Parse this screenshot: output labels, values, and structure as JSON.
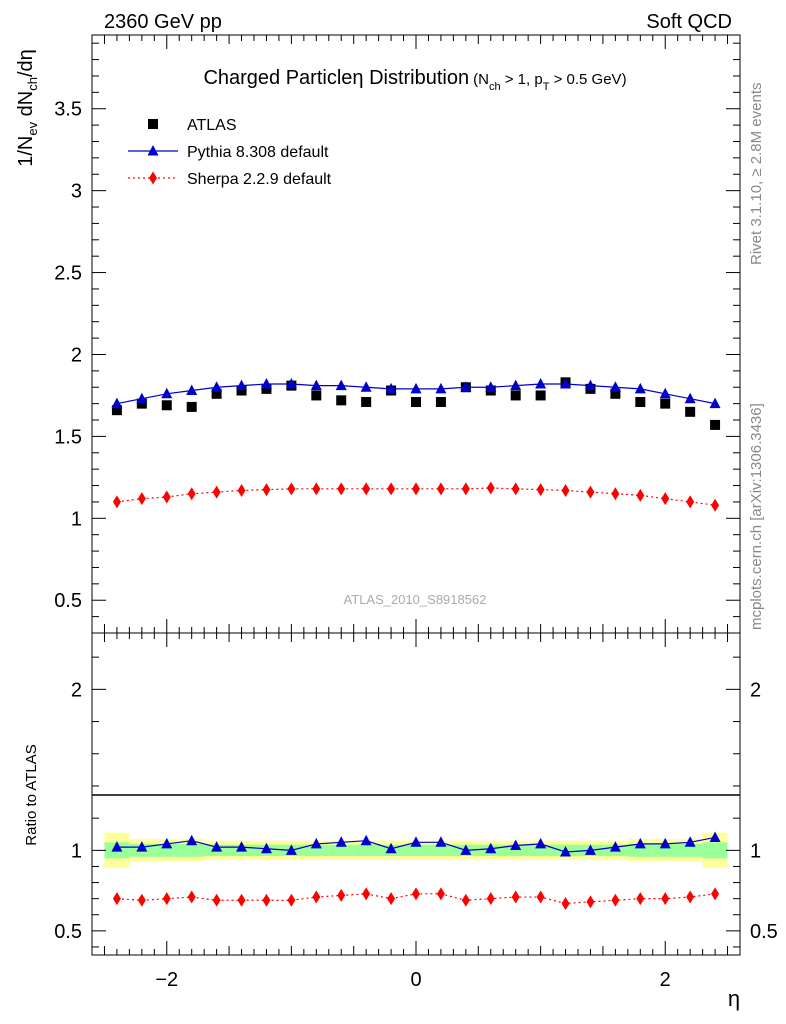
{
  "header": {
    "left": "2360 GeV pp",
    "right": "Soft QCD"
  },
  "side_labels": {
    "rivet": "Rivet 3.1.10, ≥ 2.8M events",
    "mcplots": "mcplots.cern.ch [arXiv:1306.3436]"
  },
  "watermark": "ATLAS_2010_S8918562",
  "chart_data": [
    {
      "type": "scatter",
      "title": "Charged Particleη Distribution",
      "title_cut": {
        "pre": "(N",
        "sub1": "ch",
        "mid": " > 1, p",
        "sub2": "T",
        "post": " > 0.5 GeV)"
      },
      "ylabel": {
        "a": "1/N",
        "a_sub": "ev",
        "b": " dN",
        "b_sub": "ch",
        "c": "/dη"
      },
      "xlabel": "η",
      "xlim": [
        -2.6,
        2.6
      ],
      "ylim": [
        0.3,
        3.95
      ],
      "y_ticks": [
        0.5,
        1,
        1.5,
        2,
        2.5,
        3,
        3.5
      ],
      "y_tick_labels": [
        "0.5",
        "1",
        "1.5",
        "2",
        "2.5",
        "3",
        "3.5"
      ],
      "x": [
        -2.4,
        -2.2,
        -2.0,
        -1.8,
        -1.6,
        -1.4,
        -1.2,
        -1.0,
        -0.8,
        -0.6,
        -0.4,
        -0.2,
        0.0,
        0.2,
        0.4,
        0.6,
        0.8,
        1.0,
        1.2,
        1.4,
        1.6,
        1.8,
        2.0,
        2.2,
        2.4
      ],
      "legend_position": "top-left",
      "series": [
        {
          "name": "ATLAS",
          "color": "#000000",
          "marker": "square",
          "values": [
            1.66,
            1.7,
            1.69,
            1.68,
            1.76,
            1.78,
            1.79,
            1.81,
            1.75,
            1.72,
            1.71,
            1.78,
            1.71,
            1.71,
            1.8,
            1.78,
            1.75,
            1.75,
            1.83,
            1.79,
            1.76,
            1.71,
            1.7,
            1.65,
            1.57
          ]
        },
        {
          "name": "Pythia 8.308 default",
          "color": "#0000cc",
          "marker": "triangle",
          "line": "solid",
          "values": [
            1.7,
            1.73,
            1.76,
            1.78,
            1.8,
            1.81,
            1.82,
            1.82,
            1.81,
            1.81,
            1.8,
            1.79,
            1.79,
            1.79,
            1.8,
            1.8,
            1.81,
            1.82,
            1.82,
            1.81,
            1.8,
            1.79,
            1.76,
            1.73,
            1.7
          ]
        },
        {
          "name": "Sherpa 2.2.9 default",
          "color": "#ff0000",
          "marker": "diamond",
          "line": "dotted",
          "values": [
            1.1,
            1.12,
            1.13,
            1.15,
            1.16,
            1.17,
            1.175,
            1.18,
            1.18,
            1.18,
            1.18,
            1.18,
            1.18,
            1.18,
            1.18,
            1.185,
            1.18,
            1.175,
            1.17,
            1.16,
            1.15,
            1.14,
            1.12,
            1.1,
            1.08
          ]
        }
      ]
    },
    {
      "type": "scatter",
      "ylabel": "Ratio to ATLAS",
      "xlim": [
        -2.6,
        2.6
      ],
      "ylim": [
        0.35,
        2.35
      ],
      "y_ticks": [
        0.5,
        1,
        2
      ],
      "y_tick_labels": [
        "0.5",
        "1",
        "2"
      ],
      "x_ticks": [
        -2,
        0,
        2
      ],
      "x_tick_labels": [
        "−2",
        "0",
        "2"
      ],
      "band_colors": {
        "inner": "#99ff99",
        "outer": "#ffff99"
      },
      "bands": {
        "inner": [
          [
            0.95,
            1.05
          ],
          [
            0.96,
            1.04
          ],
          [
            0.96,
            1.04
          ],
          [
            0.96,
            1.04
          ],
          [
            0.965,
            1.035
          ],
          [
            0.965,
            1.035
          ],
          [
            0.965,
            1.035
          ],
          [
            0.965,
            1.035
          ],
          [
            0.965,
            1.035
          ],
          [
            0.965,
            1.035
          ],
          [
            0.965,
            1.035
          ],
          [
            0.965,
            1.035
          ],
          [
            0.965,
            1.035
          ],
          [
            0.965,
            1.035
          ],
          [
            0.965,
            1.035
          ],
          [
            0.965,
            1.035
          ],
          [
            0.965,
            1.035
          ],
          [
            0.965,
            1.035
          ],
          [
            0.965,
            1.035
          ],
          [
            0.965,
            1.035
          ],
          [
            0.965,
            1.035
          ],
          [
            0.96,
            1.04
          ],
          [
            0.96,
            1.04
          ],
          [
            0.96,
            1.04
          ],
          [
            0.95,
            1.05
          ]
        ],
        "outer": [
          [
            0.89,
            1.11
          ],
          [
            0.93,
            1.07
          ],
          [
            0.93,
            1.07
          ],
          [
            0.93,
            1.07
          ],
          [
            0.94,
            1.06
          ],
          [
            0.94,
            1.06
          ],
          [
            0.94,
            1.06
          ],
          [
            0.94,
            1.06
          ],
          [
            0.94,
            1.06
          ],
          [
            0.94,
            1.06
          ],
          [
            0.94,
            1.06
          ],
          [
            0.94,
            1.06
          ],
          [
            0.94,
            1.06
          ],
          [
            0.94,
            1.06
          ],
          [
            0.94,
            1.06
          ],
          [
            0.94,
            1.06
          ],
          [
            0.94,
            1.06
          ],
          [
            0.94,
            1.06
          ],
          [
            0.94,
            1.06
          ],
          [
            0.94,
            1.06
          ],
          [
            0.94,
            1.06
          ],
          [
            0.93,
            1.07
          ],
          [
            0.93,
            1.07
          ],
          [
            0.93,
            1.07
          ],
          [
            0.89,
            1.11
          ]
        ]
      },
      "series": [
        {
          "name": "Pythia 8.308 default",
          "color": "#0000cc",
          "marker": "triangle",
          "line": "solid",
          "values": [
            1.02,
            1.02,
            1.04,
            1.06,
            1.02,
            1.02,
            1.01,
            1.0,
            1.04,
            1.05,
            1.06,
            1.01,
            1.05,
            1.05,
            1.0,
            1.01,
            1.03,
            1.04,
            0.99,
            1.0,
            1.02,
            1.04,
            1.04,
            1.05,
            1.08
          ]
        },
        {
          "name": "Sherpa 2.2.9 default",
          "color": "#ff0000",
          "marker": "diamond",
          "line": "dotted",
          "values": [
            0.7,
            0.69,
            0.7,
            0.71,
            0.69,
            0.69,
            0.69,
            0.69,
            0.71,
            0.72,
            0.73,
            0.7,
            0.73,
            0.73,
            0.69,
            0.7,
            0.71,
            0.71,
            0.67,
            0.68,
            0.69,
            0.7,
            0.7,
            0.71,
            0.73
          ]
        }
      ]
    }
  ]
}
